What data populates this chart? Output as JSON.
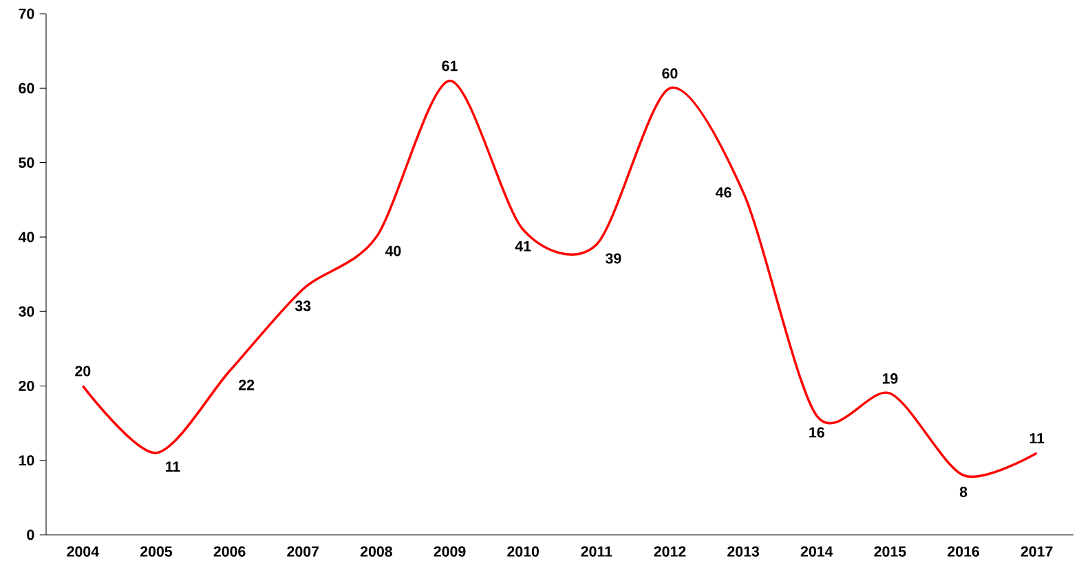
{
  "chart_data": {
    "type": "line",
    "categories": [
      "2004",
      "2005",
      "2006",
      "2007",
      "2008",
      "2009",
      "2010",
      "2011",
      "2012",
      "2013",
      "2014",
      "2015",
      "2016",
      "2017"
    ],
    "series": [
      {
        "color": "#ff0000",
        "values": [
          20,
          11,
          22,
          33,
          40,
          61,
          41,
          39,
          60,
          46,
          16,
          19,
          8,
          11
        ]
      }
    ],
    "ylim": [
      0,
      70
    ],
    "yticks": [
      0,
      10,
      20,
      30,
      40,
      50,
      60,
      70
    ],
    "data_labels": true,
    "grid": false,
    "marker": "none",
    "line_style": "solid"
  }
}
